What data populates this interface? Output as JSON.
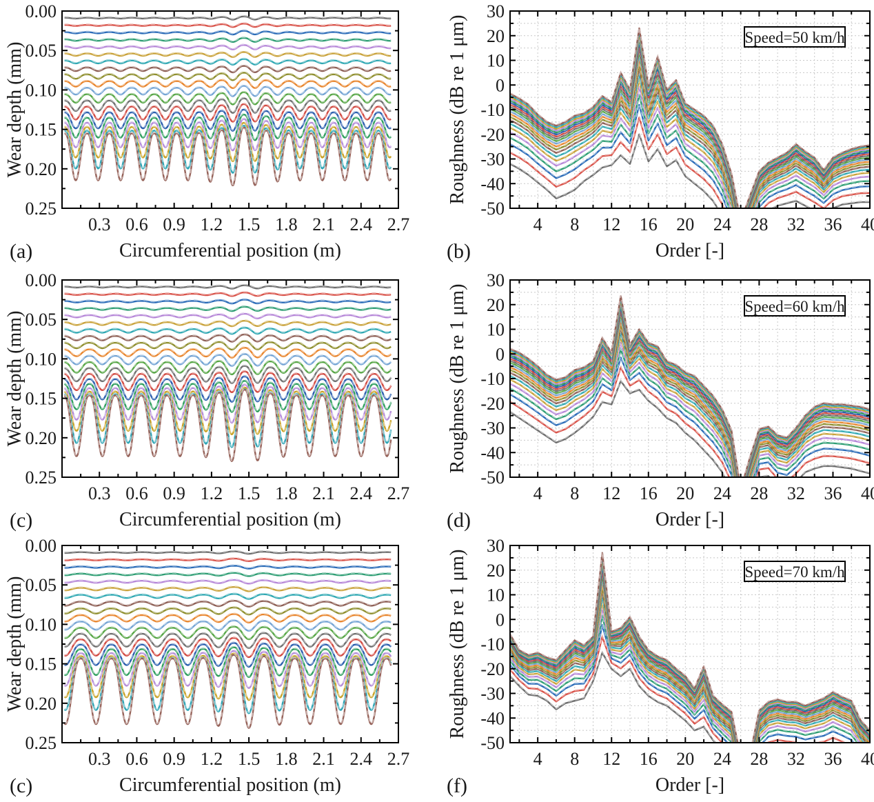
{
  "figure_title": "",
  "palette": [
    "#6e6e6e",
    "#d9544b",
    "#2b6cb8",
    "#2f9e74",
    "#b687d8",
    "#c9a23a",
    "#2fa8b3",
    "#8e6056",
    "#8f8f2e",
    "#e8862f",
    "#74a4d4",
    "#57a646",
    "#6f6f6f",
    "#d24a42",
    "#2b5fae",
    "#2f9e5e",
    "#b58cd9",
    "#c9a227",
    "#2fa5b5",
    "#96635a"
  ],
  "style": {
    "axis_color": "#000000",
    "grid_color": "#c8c8c8",
    "text_color": "#1a1a1a",
    "legend_bg": "#ffffff",
    "curve_width": 2.4,
    "dash_twin_lighten": 0.5
  },
  "chart_data": [
    {
      "id": "a",
      "type": "line",
      "panel_kind": "wear",
      "label": "(a)",
      "xlabel": "Circumferential position (m)",
      "ylabel": "Wear depth (mm)",
      "xlim": [
        0,
        2.7
      ],
      "ylim": [
        0,
        0.25
      ],
      "y_inverted": true,
      "grid": false,
      "x_ticks": [
        0.3,
        0.6,
        0.9,
        1.2,
        1.5,
        1.8,
        2.1,
        2.4,
        2.7
      ],
      "x_tick_labels": [
        "0.3",
        "0.6",
        "0.9",
        "1.2",
        "1.5",
        "1.8",
        "2.1",
        "2.4",
        "2.7"
      ],
      "y_ticks": [
        0,
        0.05,
        0.1,
        0.15,
        0.2,
        0.25
      ],
      "y_tick_labels": [
        "0.00",
        "0.05",
        "0.10",
        "0.15",
        "0.20",
        "0.25"
      ],
      "x_minor_step": 0.15,
      "y_minor_step": 0.025,
      "n_curves": 20,
      "x_start": 0.02,
      "x_end": 2.64,
      "cycles": 15,
      "peak_x0": 0.2,
      "baseline_start": 0.009,
      "baseline_step": 0.00926,
      "amp_start": 0.0005,
      "amp_growth": 1.24,
      "bump_center": 1.45,
      "bump_width": 0.22,
      "bump_add": 0.0015,
      "bump_mul": 0.2,
      "trough_sharpness": 1.35
    },
    {
      "id": "b",
      "type": "line",
      "panel_kind": "spectrum",
      "label": "(b)",
      "legend": "Speed=50 km/h",
      "xlabel": "Order [-]",
      "ylabel": "Roughness (dB re 1 μm)",
      "xlim": [
        1,
        40
      ],
      "ylim": [
        -50,
        30
      ],
      "grid": true,
      "x_ticks": [
        4,
        8,
        12,
        16,
        20,
        24,
        28,
        32,
        36,
        40
      ],
      "x_tick_labels": [
        "4",
        "8",
        "12",
        "16",
        "20",
        "24",
        "28",
        "32",
        "36",
        "40"
      ],
      "y_ticks": [
        30,
        20,
        10,
        0,
        -10,
        -20,
        -30,
        -40,
        -50
      ],
      "y_tick_labels": [
        "30",
        "20",
        "10",
        "0",
        "-10",
        "-20",
        "-30",
        "-40",
        "-50"
      ],
      "x_minor_step": 2,
      "y_minor_step": 5,
      "orders_start": 1,
      "top_curve": [
        -3.5,
        -5.5,
        -8,
        -12,
        -15,
        -16.5,
        -15,
        -12.5,
        -11.5,
        -9,
        -4.5,
        -7,
        5,
        -2,
        23,
        -0.5,
        11.5,
        -2,
        2,
        -7.5,
        -10,
        -12.5,
        -16.5,
        -24,
        -36,
        -55,
        -45,
        -35,
        -31.5,
        -29.5,
        -27.5,
        -24,
        -27,
        -29.5,
        -34.5,
        -29.5,
        -27.5,
        -26,
        -25,
        -24.5
      ],
      "bottom_curve": [
        -32,
        -34,
        -36.5,
        -39.5,
        -42.5,
        -46,
        -44.5,
        -42.5,
        -39,
        -36.5,
        -33.5,
        -32.5,
        -28.5,
        -32,
        -20,
        -31,
        -26,
        -33,
        -30.5,
        -37,
        -40,
        -43,
        -47,
        -53,
        -62,
        -75,
        -64,
        -55,
        -51,
        -49,
        -48,
        -47,
        -49,
        -51,
        -53,
        -50,
        -48.5,
        -48,
        -47.5,
        -47.5
      ],
      "fractions": [
        0,
        0.16,
        0.278,
        0.372,
        0.449,
        0.516,
        0.574,
        0.625,
        0.671,
        0.713,
        0.751,
        0.787,
        0.819,
        0.85,
        0.879,
        0.906,
        0.931,
        0.955,
        0.978,
        1
      ]
    },
    {
      "id": "c1",
      "type": "line",
      "panel_kind": "wear",
      "label": "(c)",
      "xlabel": "Circumferential position (m)",
      "ylabel": "Wear depth (mm)",
      "xlim": [
        0,
        2.7
      ],
      "ylim": [
        0,
        0.25
      ],
      "y_inverted": true,
      "grid": false,
      "x_ticks": [
        0.3,
        0.6,
        0.9,
        1.2,
        1.5,
        1.8,
        2.1,
        2.4,
        2.7
      ],
      "x_tick_labels": [
        "0.3",
        "0.6",
        "0.9",
        "1.2",
        "1.5",
        "1.8",
        "2.1",
        "2.4",
        "2.7"
      ],
      "y_ticks": [
        0,
        0.05,
        0.1,
        0.15,
        0.2,
        0.25
      ],
      "y_tick_labels": [
        "0.00",
        "0.05",
        "0.10",
        "0.15",
        "0.20",
        "0.25"
      ],
      "x_minor_step": 0.15,
      "y_minor_step": 0.025,
      "n_curves": 20,
      "x_start": 0.02,
      "x_end": 2.64,
      "cycles": 13,
      "peak_x0": 0.22,
      "baseline_start": 0.009,
      "baseline_step": 0.00926,
      "amp_start": 0.0006,
      "amp_growth": 1.245,
      "bump_center": 1.45,
      "bump_width": 0.22,
      "bump_add": 0.0015,
      "bump_mul": 0.15,
      "trough_sharpness": 1.35
    },
    {
      "id": "d",
      "type": "line",
      "panel_kind": "spectrum",
      "label": "(d)",
      "legend": "Speed=60 km/h",
      "xlabel": "Order [-]",
      "ylabel": "Roughness (dB re 1 μm)",
      "xlim": [
        1,
        40
      ],
      "ylim": [
        -50,
        30
      ],
      "grid": true,
      "x_ticks": [
        4,
        8,
        12,
        16,
        20,
        24,
        28,
        32,
        36,
        40
      ],
      "x_tick_labels": [
        "4",
        "8",
        "12",
        "16",
        "20",
        "24",
        "28",
        "32",
        "36",
        "40"
      ],
      "y_ticks": [
        30,
        20,
        10,
        0,
        -10,
        -20,
        -30,
        -40,
        -50
      ],
      "y_tick_labels": [
        "30",
        "20",
        "10",
        "0",
        "-10",
        "-20",
        "-30",
        "-40",
        "-50"
      ],
      "x_minor_step": 2,
      "y_minor_step": 5,
      "orders_start": 1,
      "top_curve": [
        2,
        0.5,
        -2,
        -5,
        -8.5,
        -10.5,
        -9.5,
        -6.5,
        -5.5,
        -3,
        6.5,
        0.5,
        23.5,
        3.5,
        10,
        4.5,
        3,
        -3,
        -4.5,
        -7.5,
        -9,
        -13,
        -17,
        -22.5,
        -31,
        -55,
        -42,
        -30.5,
        -29.5,
        -33,
        -34,
        -30,
        -25,
        -21.5,
        -20,
        -20.5,
        -20.5,
        -21,
        -21.5,
        -22.5
      ],
      "bottom_curve": [
        -23.5,
        -26,
        -28.5,
        -31,
        -33.5,
        -36,
        -34.5,
        -32,
        -29,
        -25.5,
        -19.5,
        -20.5,
        -11,
        -16,
        -14.5,
        -19,
        -22,
        -26,
        -28,
        -32,
        -35,
        -39,
        -43,
        -48,
        -56,
        -75,
        -62,
        -50,
        -49.5,
        -54,
        -55,
        -52,
        -48,
        -46.5,
        -45.5,
        -45.5,
        -46,
        -46.5,
        -47.5,
        -48.5
      ],
      "fractions": [
        0,
        0.16,
        0.278,
        0.372,
        0.449,
        0.516,
        0.574,
        0.625,
        0.671,
        0.713,
        0.751,
        0.787,
        0.819,
        0.85,
        0.879,
        0.906,
        0.931,
        0.955,
        0.978,
        1
      ]
    },
    {
      "id": "c2",
      "type": "line",
      "panel_kind": "wear",
      "label": "(c)",
      "xlabel": "Circumferential position (m)",
      "ylabel": "Wear depth (mm)",
      "xlim": [
        0,
        2.7
      ],
      "ylim": [
        0,
        0.25
      ],
      "y_inverted": true,
      "grid": false,
      "x_ticks": [
        0.3,
        0.6,
        0.9,
        1.2,
        1.5,
        1.8,
        2.1,
        2.4,
        2.7
      ],
      "x_tick_labels": [
        "0.3",
        "0.6",
        "0.9",
        "1.2",
        "1.5",
        "1.8",
        "2.1",
        "2.4",
        "2.7"
      ],
      "y_ticks": [
        0,
        0.05,
        0.1,
        0.15,
        0.2,
        0.25
      ],
      "y_tick_labels": [
        "0.00",
        "0.05",
        "0.10",
        "0.15",
        "0.20",
        "0.25"
      ],
      "x_minor_step": 0.15,
      "y_minor_step": 0.025,
      "n_curves": 20,
      "x_start": 0.02,
      "x_end": 2.64,
      "cycles": 11,
      "peak_x0": 0.15,
      "baseline_start": 0.009,
      "baseline_step": 0.00926,
      "amp_start": 0.0005,
      "amp_growth": 1.262,
      "bump_center": 1.45,
      "bump_width": 0.22,
      "bump_add": 0.001,
      "bump_mul": 0.1,
      "trough_sharpness": 1.35
    },
    {
      "id": "f",
      "type": "line",
      "panel_kind": "spectrum",
      "label": "(f)",
      "legend": "Speed=70 km/h",
      "xlabel": "Order [-]",
      "ylabel": "Roughness (dB re 1 μm)",
      "xlim": [
        1,
        40
      ],
      "ylim": [
        -50,
        30
      ],
      "grid": true,
      "x_ticks": [
        4,
        8,
        12,
        16,
        20,
        24,
        28,
        32,
        36,
        40
      ],
      "x_tick_labels": [
        "4",
        "8",
        "12",
        "16",
        "20",
        "24",
        "28",
        "32",
        "36",
        "40"
      ],
      "y_ticks": [
        30,
        20,
        10,
        0,
        -10,
        -20,
        -30,
        -40,
        -50
      ],
      "y_tick_labels": [
        "30",
        "20",
        "10",
        "0",
        "-10",
        "-20",
        "-30",
        "-40",
        "-50"
      ],
      "x_minor_step": 2,
      "y_minor_step": 5,
      "orders_start": 1,
      "top_curve": [
        -6,
        -12.5,
        -14.5,
        -13.5,
        -15.5,
        -16.5,
        -12.5,
        -8.5,
        -10.5,
        -7,
        27,
        -5,
        -3.5,
        1,
        -7,
        -12.5,
        -15,
        -16.5,
        -20,
        -23,
        -28,
        -19,
        -31,
        -34.5,
        -37.5,
        -56,
        -55,
        -37,
        -33.5,
        -32.5,
        -33.5,
        -33.5,
        -35,
        -33.5,
        -32,
        -29.5,
        -31.5,
        -33,
        -41,
        -45
      ],
      "bottom_curve": [
        -23,
        -27,
        -30.5,
        -31,
        -33,
        -36.5,
        -34,
        -33,
        -32,
        -25,
        -13.5,
        -20,
        -23,
        -20,
        -27,
        -31,
        -33.5,
        -35,
        -38,
        -41,
        -45,
        -43.5,
        -49,
        -53,
        -57,
        -75,
        -70,
        -57,
        -53,
        -52,
        -52.5,
        -53,
        -54,
        -53.5,
        -53,
        -51.5,
        -53,
        -55,
        -58,
        -62
      ],
      "fractions": [
        0,
        0.16,
        0.278,
        0.372,
        0.449,
        0.516,
        0.574,
        0.625,
        0.671,
        0.713,
        0.751,
        0.787,
        0.819,
        0.85,
        0.879,
        0.906,
        0.931,
        0.955,
        0.978,
        1
      ]
    }
  ],
  "layout_note": "3 rows x 2 cols; left column wear-depth panels, right column roughness spectra"
}
